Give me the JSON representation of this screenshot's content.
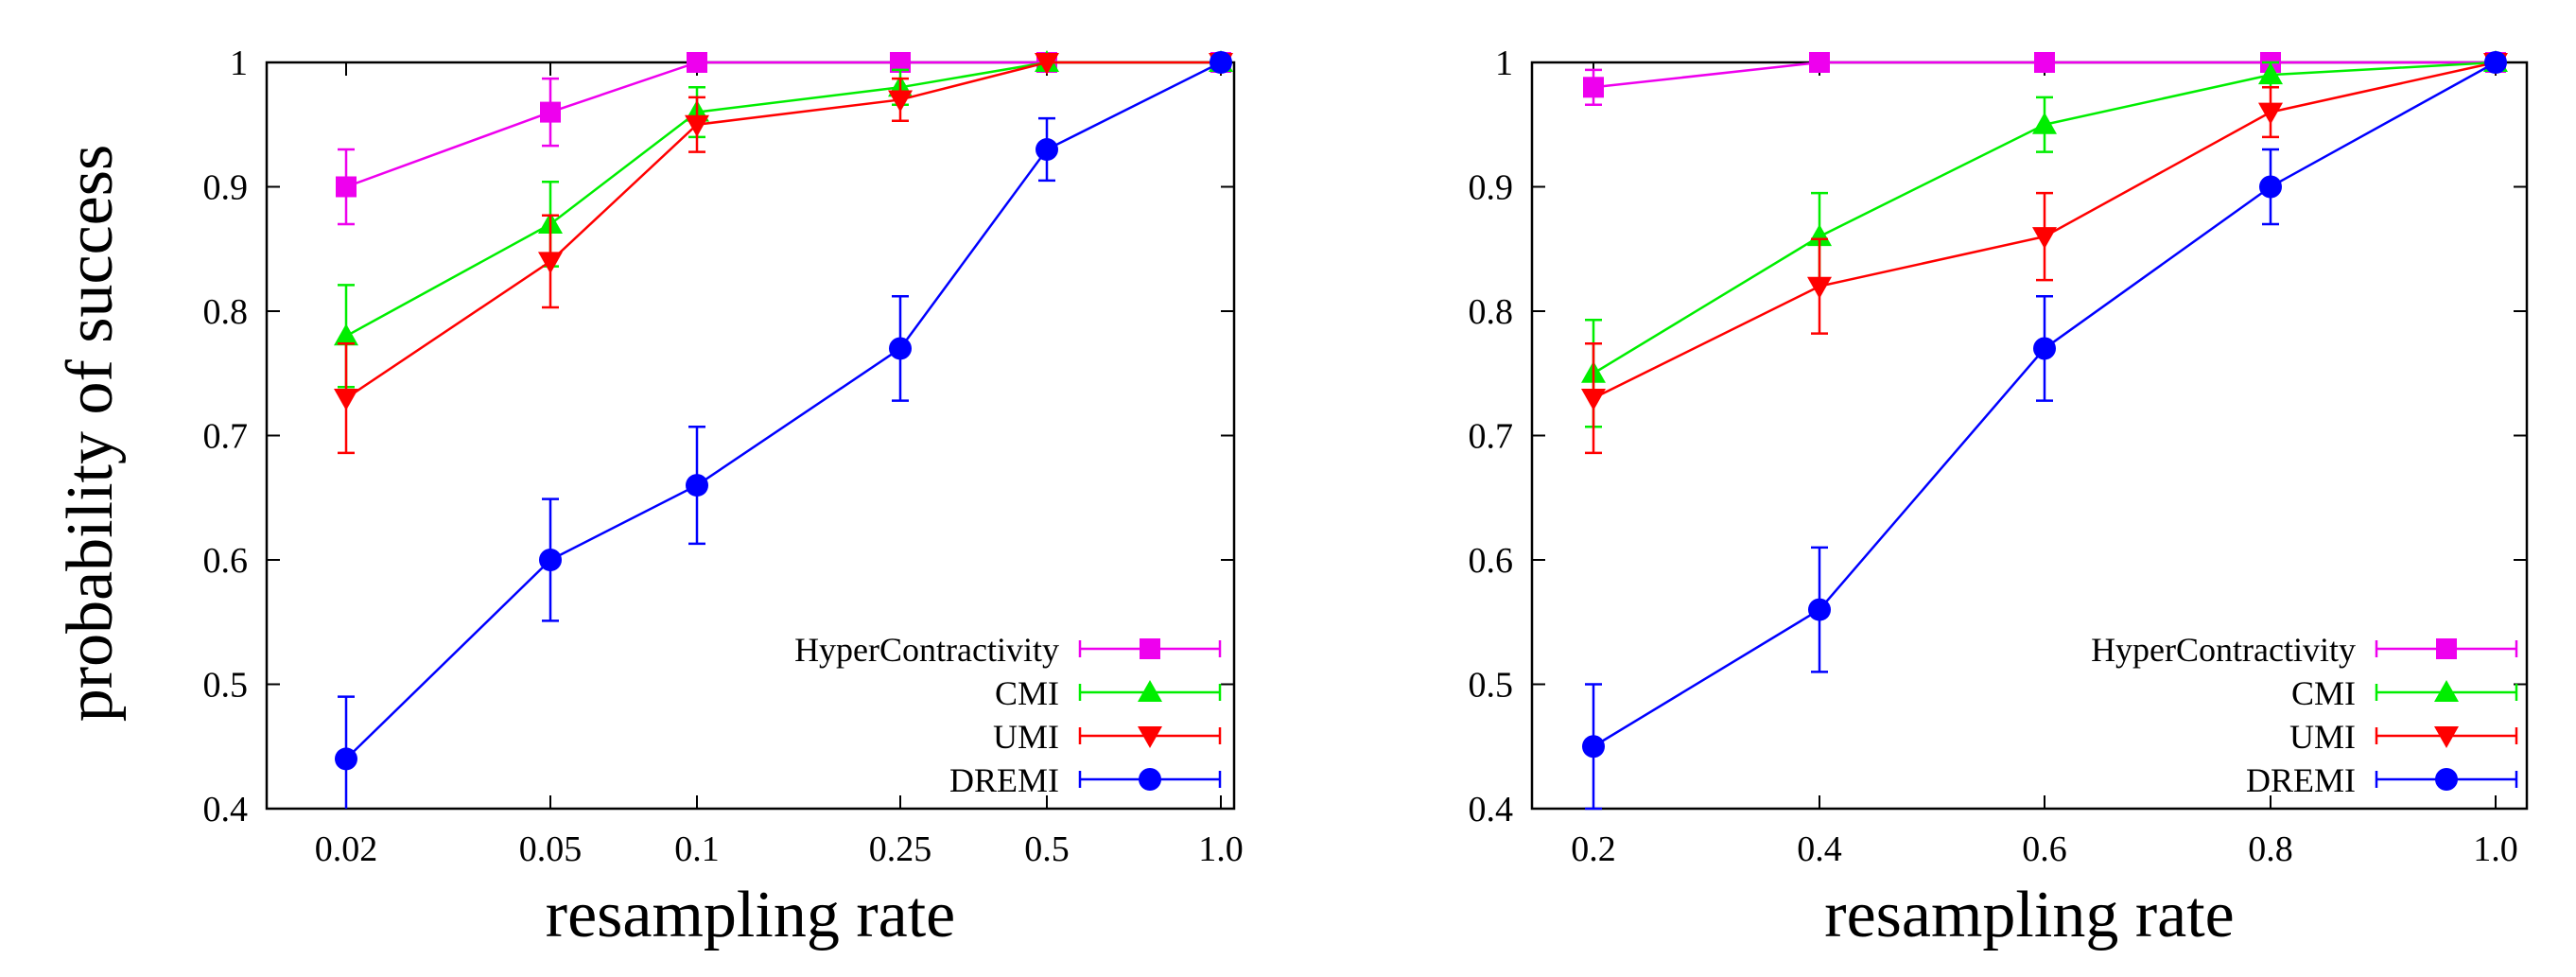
{
  "figure_ylabel": "probability of success",
  "chart_data": [
    {
      "type": "line",
      "title": "",
      "xlabel": "resampling rate",
      "ylabel": "probability of success",
      "x_scale": "categorical",
      "categories": [
        "0.02",
        "0.05",
        "0.1",
        "0.25",
        "0.5",
        "1.0"
      ],
      "ylim": [
        0.4,
        1.0
      ],
      "yticks": [
        0.4,
        0.5,
        0.6,
        0.7,
        0.8,
        0.9,
        1.0
      ],
      "ytick_labels": [
        "0.4",
        "0.5",
        "0.6",
        "0.7",
        "0.8",
        "0.9",
        "1"
      ],
      "legend_position": "bottom-right",
      "series": [
        {
          "name": "HyperContractivity",
          "color": "#ee00ee",
          "marker": "square",
          "values": [
            0.9,
            0.96,
            1.0,
            1.0,
            1.0,
            1.0
          ],
          "errors": [
            0.03,
            0.027,
            0,
            0,
            0,
            0
          ]
        },
        {
          "name": "CMI",
          "color": "#00ee00",
          "marker": "triangle-up",
          "values": [
            0.78,
            0.87,
            0.96,
            0.98,
            1.0,
            1.0
          ],
          "errors": [
            0.041,
            0.034,
            0.02,
            0.014,
            0,
            0
          ]
        },
        {
          "name": "UMI",
          "color": "#ff0000",
          "marker": "triangle-down",
          "values": [
            0.73,
            0.84,
            0.95,
            0.97,
            1.0,
            1.0
          ],
          "errors": [
            0.044,
            0.037,
            0.022,
            0.017,
            0,
            0
          ]
        },
        {
          "name": "DREMI",
          "color": "#0000ff",
          "marker": "circle",
          "values": [
            0.44,
            0.6,
            0.66,
            0.77,
            0.93,
            1.0
          ],
          "errors": [
            0.05,
            0.049,
            0.047,
            0.042,
            0.025,
            0
          ]
        }
      ]
    },
    {
      "type": "line",
      "title": "",
      "xlabel": "resampling rate",
      "ylabel": "",
      "x_scale": "categorical",
      "categories": [
        "0.2",
        "0.4",
        "0.6",
        "0.8",
        "1.0"
      ],
      "ylim": [
        0.4,
        1.0
      ],
      "yticks": [
        0.4,
        0.5,
        0.6,
        0.7,
        0.8,
        0.9,
        1.0
      ],
      "ytick_labels": [
        "0.4",
        "0.5",
        "0.6",
        "0.7",
        "0.8",
        "0.9",
        "1"
      ],
      "legend_position": "bottom-right",
      "series": [
        {
          "name": "HyperContractivity",
          "color": "#ee00ee",
          "marker": "square",
          "values": [
            0.98,
            1.0,
            1.0,
            1.0,
            1.0
          ],
          "errors": [
            0.014,
            0,
            0,
            0,
            0
          ]
        },
        {
          "name": "CMI",
          "color": "#00ee00",
          "marker": "triangle-up",
          "values": [
            0.75,
            0.86,
            0.95,
            0.99,
            1.0
          ],
          "errors": [
            0.043,
            0.035,
            0.022,
            0.01,
            0
          ]
        },
        {
          "name": "UMI",
          "color": "#ff0000",
          "marker": "triangle-down",
          "values": [
            0.73,
            0.82,
            0.86,
            0.96,
            1.0
          ],
          "errors": [
            0.044,
            0.038,
            0.035,
            0.02,
            0
          ]
        },
        {
          "name": "DREMI",
          "color": "#0000ff",
          "marker": "circle",
          "values": [
            0.45,
            0.56,
            0.77,
            0.9,
            1.0
          ],
          "errors": [
            0.05,
            0.05,
            0.042,
            0.03,
            0
          ]
        }
      ]
    }
  ]
}
